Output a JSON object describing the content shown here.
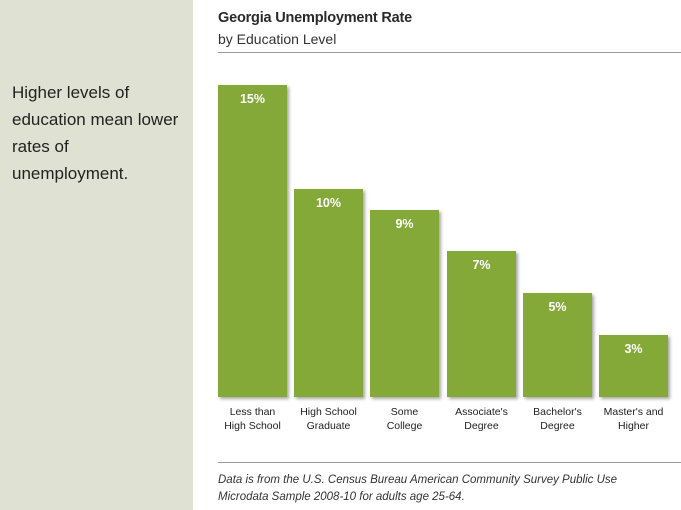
{
  "sidebar": {
    "text": "Higher levels of education mean lower rates of unemployment."
  },
  "source_note": "Data is from the U.S. Census Bureau American Community Survey Public Use Microdata Sample 2008-10 for adults age 25-64.",
  "colors": {
    "bar": "#85a938",
    "sidebar_background": "#dfe2d3"
  },
  "chart_data": {
    "type": "bar",
    "title": "Georgia Unemployment Rate",
    "subtitle": "by Education Level",
    "xlabel": "",
    "ylabel": "",
    "ylim": [
      0,
      15
    ],
    "grid": false,
    "legend": "none",
    "categories": [
      "Less than\nHigh School",
      "High School\nGraduate",
      "Some\nCollege",
      "Associate's\nDegree",
      "Bachelor's\nDegree",
      "Master's and\nHigher"
    ],
    "values": [
      15,
      10,
      9,
      7,
      5,
      3
    ],
    "value_labels": [
      "15%",
      "10%",
      "9%",
      "7%",
      "5%",
      "3%"
    ]
  }
}
